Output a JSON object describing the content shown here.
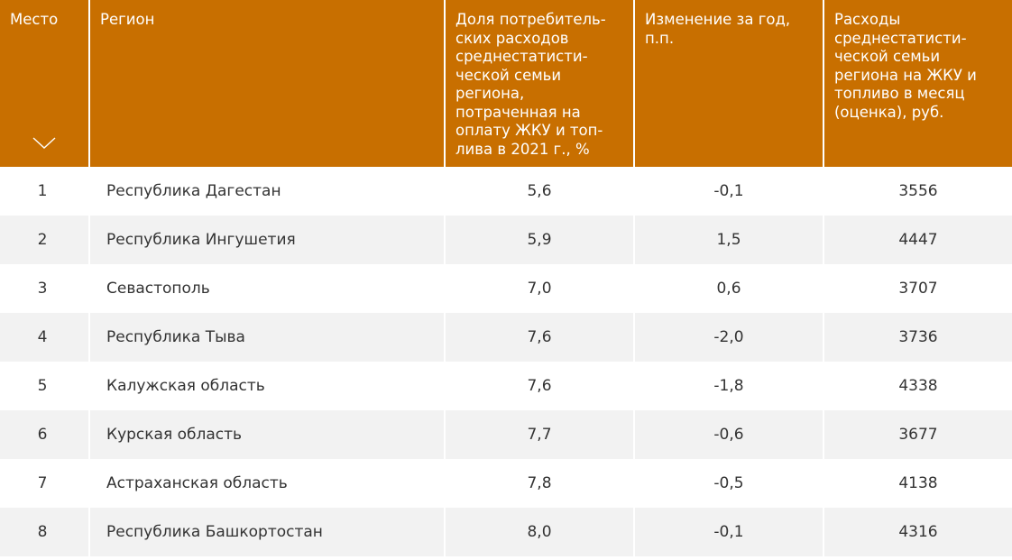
{
  "header": {
    "col_place": "Место",
    "col_region": "Регион",
    "col_share": "Доля потребитель-\nских расходов\nсреднестатисти-\nческой семьи\nрегиона,\nпотраченная на\nоплату ЖКУ и топ-\nлива в 2021 г., %",
    "col_change": "Изменение за год,\nп.п.",
    "col_expenses": "Расходы\nсреднестатисти-\nческой семьи\nрегиона на ЖКУ и\nтопливо в месяц\n(оценка), руб.",
    "sort_icon": "chevron-down-icon"
  },
  "colors": {
    "header_bg": "#c86f00",
    "header_text": "#ffffff",
    "row_alt_bg": "#f2f2f2",
    "text": "#333333"
  },
  "rows": [
    {
      "place": "1",
      "region": "Республика Дагестан",
      "share": "5,6",
      "change": "-0,1",
      "expenses": "3556"
    },
    {
      "place": "2",
      "region": "Республика Ингушетия",
      "share": "5,9",
      "change": "1,5",
      "expenses": "4447"
    },
    {
      "place": "3",
      "region": "Севастополь",
      "share": "7,0",
      "change": "0,6",
      "expenses": "3707"
    },
    {
      "place": "4",
      "region": "Республика Тыва",
      "share": "7,6",
      "change": "-2,0",
      "expenses": "3736"
    },
    {
      "place": "5",
      "region": "Калужская область",
      "share": "7,6",
      "change": "-1,8",
      "expenses": "4338"
    },
    {
      "place": "6",
      "region": "Курская область",
      "share": "7,7",
      "change": "-0,6",
      "expenses": "3677"
    },
    {
      "place": "7",
      "region": "Астраханская область",
      "share": "7,8",
      "change": "-0,5",
      "expenses": "4138"
    },
    {
      "place": "8",
      "region": "Республика Башкортостан",
      "share": "8,0",
      "change": "-0,1",
      "expenses": "4316"
    }
  ]
}
